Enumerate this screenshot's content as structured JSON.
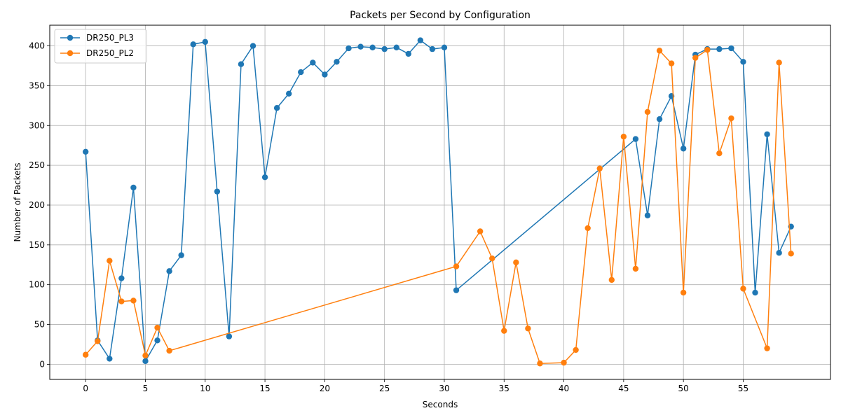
{
  "chart_data": {
    "type": "line",
    "title": "Packets per Second by Configuration",
    "xlabel": "Seconds",
    "ylabel": "Number of Packets",
    "xlim": [
      -3,
      62.3
    ],
    "ylim": [
      -19,
      426
    ],
    "xticks": [
      0,
      5,
      10,
      15,
      20,
      25,
      30,
      35,
      40,
      45,
      50,
      55
    ],
    "yticks": [
      0,
      50,
      100,
      150,
      200,
      250,
      300,
      350,
      400
    ],
    "grid": true,
    "legend_position": "top-left",
    "series": [
      {
        "name": "DR250_PL3",
        "color": "#1f77b4",
        "x": [
          0,
          1,
          2,
          3,
          4,
          5,
          6,
          7,
          8,
          9,
          10,
          11,
          12,
          13,
          14,
          15,
          16,
          17,
          18,
          19,
          20,
          21,
          22,
          23,
          24,
          25,
          26,
          27,
          28,
          29,
          30,
          31,
          46,
          47,
          48,
          49,
          50,
          51,
          52,
          53,
          54,
          55,
          56,
          57,
          58,
          59
        ],
        "y": [
          267,
          30,
          7,
          108,
          222,
          4,
          30,
          117,
          137,
          402,
          405,
          217,
          35,
          377,
          400,
          235,
          322,
          340,
          367,
          379,
          364,
          380,
          397,
          399,
          398,
          396,
          398,
          390,
          407,
          396,
          398,
          93,
          283,
          187,
          308,
          337,
          271,
          389,
          396,
          396,
          397,
          380,
          90,
          289,
          140,
          173
        ]
      },
      {
        "name": "DR250_PL2",
        "color": "#ff7f0e",
        "x": [
          0,
          1,
          2,
          3,
          4,
          5,
          6,
          7,
          31,
          33,
          34,
          35,
          36,
          37,
          38,
          40,
          41,
          42,
          43,
          44,
          45,
          46,
          47,
          48,
          49,
          50,
          51,
          52,
          53,
          54,
          55,
          57,
          58,
          59
        ],
        "y": [
          12,
          29,
          130,
          79,
          80,
          11,
          46,
          17,
          123,
          167,
          133,
          42,
          128,
          45,
          1,
          2,
          18,
          171,
          246,
          106,
          286,
          120,
          317,
          394,
          378,
          90,
          385,
          395,
          265,
          309,
          95,
          20,
          379,
          139
        ]
      }
    ]
  }
}
